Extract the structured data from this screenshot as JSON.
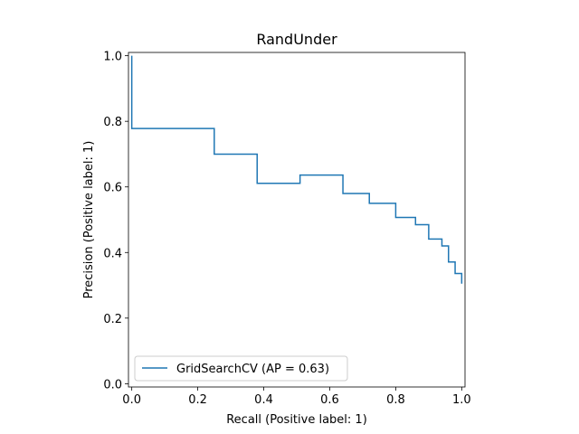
{
  "chart_data": {
    "type": "line",
    "title": "RandUnder",
    "xlabel": "Recall (Positive label: 1)",
    "ylabel": "Precision (Positive label: 1)",
    "xlim": [
      -0.01,
      1.01
    ],
    "ylim": [
      -0.01,
      1.01
    ],
    "x_ticks": [
      "0.0",
      "0.2",
      "0.4",
      "0.6",
      "0.8",
      "1.0"
    ],
    "y_ticks": [
      "0.0",
      "0.2",
      "0.4",
      "0.6",
      "0.8",
      "1.0"
    ],
    "grid": false,
    "legend_position": "lower-left",
    "colors": {
      "series": "#1f77b4"
    },
    "series": [
      {
        "name": "GridSearchCV (AP = 0.63)",
        "drawstyle": "steps-post",
        "x": [
          1.0,
          1.0,
          0.98,
          0.96,
          0.94,
          0.9,
          0.86,
          0.8,
          0.72,
          0.64,
          0.51,
          0.38,
          0.25,
          0.0,
          0.0
        ],
        "y": [
          0.305,
          0.336,
          0.371,
          0.42,
          0.441,
          0.485,
          0.507,
          0.55,
          0.58,
          0.636,
          0.611,
          0.7,
          0.778,
          0.778,
          1.0
        ]
      }
    ]
  }
}
